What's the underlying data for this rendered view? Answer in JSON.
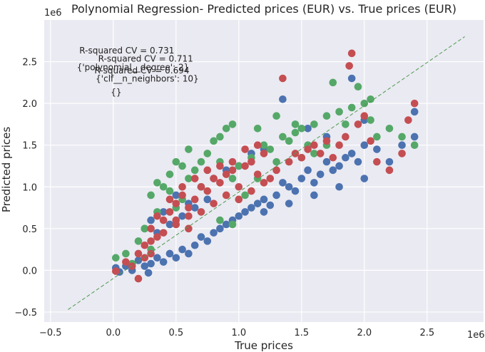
{
  "chart_data": {
    "type": "scatter",
    "title": "Polynomial Regression- Predicted prices (EUR) vs. True prices (EUR)",
    "xlabel": "True prices",
    "ylabel": "Predicted prices",
    "x_offset_label": "1e6",
    "y_offset_label": "1e6",
    "xlim": [
      -0.55,
      2.95
    ],
    "ylim": [
      -0.62,
      3.0
    ],
    "xticks": [
      -0.5,
      0.0,
      0.5,
      1.0,
      1.5,
      2.0,
      2.5
    ],
    "yticks": [
      -0.5,
      0.0,
      0.5,
      1.0,
      1.5,
      2.0,
      2.5
    ],
    "xtick_labels": [
      "−0.5",
      "0.0",
      "0.5",
      "1.0",
      "1.5",
      "2.0",
      "2.5"
    ],
    "ytick_labels": [
      "−0.5",
      "0.0",
      "0.5",
      "1.0",
      "1.5",
      "2.0",
      "2.5"
    ],
    "grid": true,
    "background": "#eaeaf2",
    "reference_line": {
      "x": [
        -0.36,
        2.8
      ],
      "y": [
        -0.47,
        2.8
      ],
      "color": "#4d9a4d",
      "style": "dashed"
    },
    "annotations": [
      {
        "text": "R-squared CV = 0.731",
        "x": -0.27,
        "y": 2.6
      },
      {
        "text": "R-squared CV = 0.711",
        "x": -0.12,
        "y": 2.5
      },
      {
        "text": "{'polynomial__degree': 2}",
        "x": -0.29,
        "y": 2.4
      },
      {
        "text": "R-squared CV = 0.694",
        "x": -0.15,
        "y": 2.36
      },
      {
        "text": "{'clf__n_neighbors': 10}",
        "x": -0.14,
        "y": 2.26
      },
      {
        "text": "{}",
        "x": -0.02,
        "y": 2.1
      }
    ],
    "series": [
      {
        "color": "#4c72b0",
        "points": [
          [
            0.02,
            0.03
          ],
          [
            0.05,
            -0.02
          ],
          [
            0.1,
            0.05
          ],
          [
            0.15,
            0.0
          ],
          [
            0.2,
            0.12
          ],
          [
            0.25,
            0.05
          ],
          [
            0.28,
            -0.03
          ],
          [
            0.3,
            0.08
          ],
          [
            0.35,
            0.15
          ],
          [
            0.4,
            0.1
          ],
          [
            0.45,
            0.2
          ],
          [
            0.5,
            0.15
          ],
          [
            0.55,
            0.25
          ],
          [
            0.6,
            0.2
          ],
          [
            0.65,
            0.3
          ],
          [
            0.7,
            0.4
          ],
          [
            0.75,
            0.35
          ],
          [
            0.8,
            0.45
          ],
          [
            0.85,
            0.5
          ],
          [
            0.9,
            0.55
          ],
          [
            0.95,
            0.6
          ],
          [
            1.0,
            0.65
          ],
          [
            1.05,
            0.7
          ],
          [
            1.1,
            0.75
          ],
          [
            1.15,
            0.8
          ],
          [
            1.2,
            0.85
          ],
          [
            1.25,
            0.78
          ],
          [
            1.3,
            0.9
          ],
          [
            1.35,
            1.05
          ],
          [
            1.4,
            1.0
          ],
          [
            1.45,
            0.95
          ],
          [
            1.5,
            1.1
          ],
          [
            1.55,
            1.2
          ],
          [
            1.6,
            1.05
          ],
          [
            1.65,
            1.15
          ],
          [
            1.7,
            1.3
          ],
          [
            1.75,
            1.2
          ],
          [
            1.8,
            1.25
          ],
          [
            1.85,
            1.35
          ],
          [
            1.9,
            1.4
          ],
          [
            1.95,
            1.3
          ],
          [
            2.0,
            1.5
          ],
          [
            2.1,
            1.45
          ],
          [
            2.2,
            1.3
          ],
          [
            2.3,
            1.5
          ],
          [
            2.4,
            1.6
          ],
          [
            1.35,
            2.05
          ],
          [
            1.9,
            2.3
          ],
          [
            2.0,
            1.8
          ],
          [
            1.7,
            1.6
          ],
          [
            1.55,
            1.7
          ],
          [
            2.4,
            1.9
          ],
          [
            0.3,
            0.6
          ],
          [
            0.4,
            0.7
          ],
          [
            0.5,
            0.9
          ],
          [
            0.6,
            0.8
          ],
          [
            0.7,
            1.0
          ],
          [
            0.8,
            1.1
          ],
          [
            0.9,
            1.2
          ],
          [
            1.0,
            1.25
          ],
          [
            1.1,
            1.4
          ],
          [
            1.2,
            1.45
          ],
          [
            0.25,
            0.5
          ],
          [
            0.35,
            0.45
          ],
          [
            0.45,
            0.55
          ],
          [
            0.55,
            0.65
          ],
          [
            0.65,
            0.75
          ],
          [
            0.75,
            0.85
          ],
          [
            1.2,
            0.7
          ],
          [
            1.4,
            0.8
          ],
          [
            1.6,
            0.9
          ],
          [
            1.8,
            1.0
          ],
          [
            2.0,
            1.1
          ]
        ]
      },
      {
        "color": "#55a868",
        "points": [
          [
            0.02,
            0.15
          ],
          [
            0.1,
            0.2
          ],
          [
            0.15,
            0.08
          ],
          [
            0.2,
            0.35
          ],
          [
            0.25,
            0.5
          ],
          [
            0.3,
            0.9
          ],
          [
            0.35,
            0.7
          ],
          [
            0.4,
            1.0
          ],
          [
            0.45,
            0.95
          ],
          [
            0.5,
            1.3
          ],
          [
            0.55,
            0.85
          ],
          [
            0.6,
            1.1
          ],
          [
            0.65,
            1.2
          ],
          [
            0.7,
            1.0
          ],
          [
            0.75,
            1.4
          ],
          [
            0.8,
            1.55
          ],
          [
            0.85,
            1.3
          ],
          [
            0.9,
            1.7
          ],
          [
            0.95,
            1.1
          ],
          [
            1.0,
            1.25
          ],
          [
            1.05,
            0.9
          ],
          [
            1.1,
            1.35
          ],
          [
            1.15,
            1.1
          ],
          [
            1.2,
            1.5
          ],
          [
            1.25,
            1.45
          ],
          [
            1.3,
            1.3
          ],
          [
            1.35,
            1.6
          ],
          [
            1.4,
            1.55
          ],
          [
            1.45,
            1.65
          ],
          [
            1.5,
            1.7
          ],
          [
            1.55,
            1.5
          ],
          [
            1.6,
            1.75
          ],
          [
            1.7,
            1.85
          ],
          [
            1.8,
            1.9
          ],
          [
            1.85,
            1.75
          ],
          [
            1.9,
            1.95
          ],
          [
            2.0,
            2.0
          ],
          [
            2.05,
            1.8
          ],
          [
            2.1,
            1.6
          ],
          [
            2.2,
            1.7
          ],
          [
            2.3,
            1.6
          ],
          [
            2.4,
            1.5
          ],
          [
            1.75,
            2.25
          ],
          [
            1.95,
            2.2
          ],
          [
            2.05,
            2.05
          ],
          [
            0.95,
            1.75
          ],
          [
            0.3,
            0.25
          ],
          [
            0.5,
            0.75
          ],
          [
            0.6,
            1.45
          ],
          [
            0.7,
            1.3
          ],
          [
            0.85,
            1.6
          ],
          [
            1.15,
            1.7
          ],
          [
            1.3,
            1.85
          ],
          [
            1.45,
            1.75
          ],
          [
            0.35,
            1.05
          ],
          [
            0.45,
            1.15
          ],
          [
            0.55,
            1.25
          ],
          [
            1.5,
            1.35
          ],
          [
            1.6,
            1.4
          ],
          [
            1.7,
            1.5
          ],
          [
            0.85,
            0.6
          ],
          [
            0.95,
            0.55
          ]
        ]
      },
      {
        "color": "#c44e52",
        "points": [
          [
            0.02,
            -0.01
          ],
          [
            0.1,
            0.1
          ],
          [
            0.15,
            0.05
          ],
          [
            0.2,
            0.2
          ],
          [
            0.25,
            0.3
          ],
          [
            0.3,
            0.5
          ],
          [
            0.35,
            0.4
          ],
          [
            0.4,
            0.6
          ],
          [
            0.45,
            0.7
          ],
          [
            0.5,
            0.8
          ],
          [
            0.55,
            0.9
          ],
          [
            0.6,
            0.75
          ],
          [
            0.65,
            0.85
          ],
          [
            0.7,
            1.0
          ],
          [
            0.75,
            0.95
          ],
          [
            0.8,
            1.1
          ],
          [
            0.85,
            1.05
          ],
          [
            0.9,
            1.15
          ],
          [
            0.95,
            1.2
          ],
          [
            1.0,
            1.0
          ],
          [
            1.05,
            1.25
          ],
          [
            1.1,
            1.3
          ],
          [
            1.15,
            1.15
          ],
          [
            1.2,
            1.4
          ],
          [
            1.25,
            1.1
          ],
          [
            1.3,
            1.2
          ],
          [
            1.35,
            2.3
          ],
          [
            1.4,
            1.3
          ],
          [
            1.45,
            1.4
          ],
          [
            1.5,
            1.35
          ],
          [
            1.55,
            1.45
          ],
          [
            1.6,
            1.5
          ],
          [
            1.65,
            1.4
          ],
          [
            1.7,
            1.55
          ],
          [
            1.75,
            1.35
          ],
          [
            1.8,
            1.5
          ],
          [
            1.85,
            1.6
          ],
          [
            1.88,
            2.45
          ],
          [
            1.9,
            2.6
          ],
          [
            1.95,
            1.75
          ],
          [
            2.0,
            1.85
          ],
          [
            2.05,
            1.55
          ],
          [
            2.1,
            1.3
          ],
          [
            2.2,
            1.2
          ],
          [
            2.3,
            1.4
          ],
          [
            2.4,
            2.0
          ],
          [
            2.35,
            1.8
          ],
          [
            0.3,
            0.35
          ],
          [
            0.4,
            0.45
          ],
          [
            0.5,
            0.55
          ],
          [
            0.6,
            0.65
          ],
          [
            0.7,
            0.7
          ],
          [
            0.8,
            0.8
          ],
          [
            0.9,
            0.9
          ],
          [
            1.0,
            0.85
          ],
          [
            1.1,
            0.95
          ],
          [
            1.2,
            1.05
          ],
          [
            0.35,
            0.65
          ],
          [
            0.45,
            0.85
          ],
          [
            0.55,
            1.0
          ],
          [
            0.65,
            1.1
          ],
          [
            0.75,
            1.2
          ],
          [
            0.85,
            1.25
          ],
          [
            0.95,
            1.3
          ],
          [
            1.05,
            1.45
          ],
          [
            1.15,
            1.5
          ],
          [
            0.25,
            0.15
          ],
          [
            0.3,
            0.2
          ],
          [
            0.2,
            -0.1
          ],
          [
            0.5,
            0.6
          ],
          [
            0.6,
            0.5
          ]
        ]
      }
    ]
  }
}
